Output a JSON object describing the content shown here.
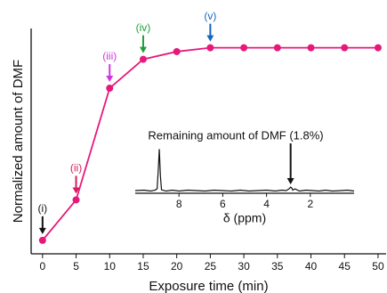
{
  "chart_data": [
    {
      "type": "line",
      "x_label": "Exposure time (min)",
      "y_label": "Normalized amount of DMF",
      "x": [
        0,
        5,
        10,
        15,
        20,
        25,
        30,
        35,
        40,
        45,
        50
      ],
      "series": [
        {
          "color": "#e6197b",
          "values": [
            0,
            0.21,
            0.79,
            0.94,
            0.98,
            1.0,
            1.0,
            1.0,
            1.0,
            1.0,
            1.0
          ]
        }
      ],
      "xlim": [
        -1.7,
        51.2
      ],
      "xticks": [
        0,
        5,
        10,
        15,
        20,
        25,
        30,
        35,
        40,
        45,
        50
      ],
      "ylim": [
        -0.07,
        1.1
      ],
      "annotations": [
        {
          "text": "(i)",
          "x": 0,
          "color": "#111111"
        },
        {
          "text": "(ii)",
          "x": 5,
          "color": "#d81b60"
        },
        {
          "text": "(iii)",
          "x": 10,
          "color": "#d433e0"
        },
        {
          "text": "(iv)",
          "x": 15,
          "color": "#1f9e3a"
        },
        {
          "text": "(v)",
          "x": 25,
          "color": "#1565c0"
        }
      ]
    },
    {
      "type": "spectrum",
      "x_label": "δ (ppm)",
      "x": [
        10,
        9.6,
        9.3,
        9.1,
        9.0,
        8.95,
        8.9,
        8.85,
        8.8,
        8.6,
        8.3,
        8.0,
        7.6,
        7.2,
        6.8,
        6.4,
        6.0,
        5.6,
        5.2,
        4.8,
        4.4,
        4.0,
        3.6,
        3.3,
        3.1,
        3.0,
        2.95,
        2.9,
        2.85,
        2.8,
        2.7,
        2.5,
        2.2,
        1.9,
        1.6,
        1.3,
        1.0,
        0.6,
        0.3,
        0
      ],
      "series": [
        {
          "color": "#111111",
          "values": [
            0.06,
            0.07,
            0.05,
            0.07,
            0.1,
            0.5,
            1.0,
            0.4,
            0.08,
            0.05,
            0.07,
            0.05,
            0.07,
            0.06,
            0.05,
            0.07,
            0.06,
            0.05,
            0.07,
            0.05,
            0.06,
            0.07,
            0.05,
            0.07,
            0.06,
            0.09,
            0.11,
            0.14,
            0.12,
            0.07,
            0.1,
            0.05,
            0.07,
            0.06,
            0.05,
            0.07,
            0.05,
            0.06,
            0.07,
            0.05
          ]
        }
      ],
      "xlim": [
        10,
        0
      ],
      "xticks": [
        8,
        6,
        4,
        2
      ],
      "ylim": [
        0,
        1.15
      ],
      "annotations": [
        {
          "text": "Remaining amount of DMF (1.8%)",
          "x": 2.9,
          "color": "#111111"
        }
      ]
    }
  ]
}
